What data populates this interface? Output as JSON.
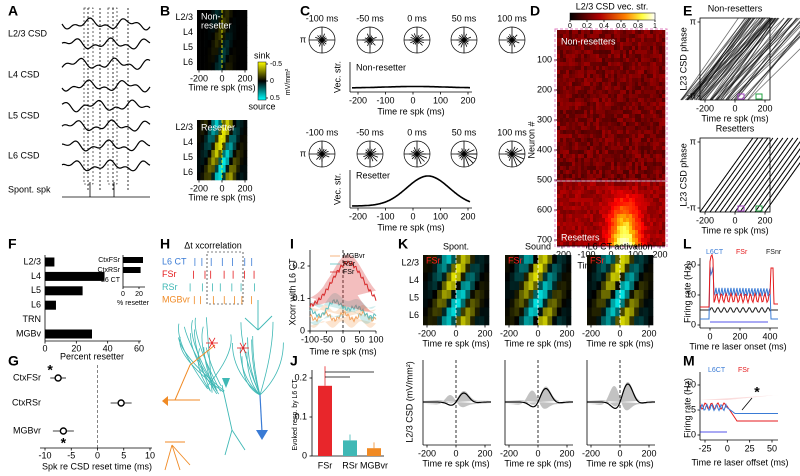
{
  "A": {
    "letter": "A",
    "traces": [
      "L2/3 CSD",
      "L4 CSD",
      "L5 CSD",
      "L6 CSD"
    ],
    "spike_label": "Spont. spk"
  },
  "B": {
    "letter": "B",
    "rows": [
      "L2/3",
      "L4",
      "L5",
      "L6"
    ],
    "groups": [
      [
        "Non-",
        "resetter"
      ],
      [
        "Resetter"
      ]
    ],
    "xticks": [
      -200,
      0,
      200
    ],
    "xlabel": "Time re spk (ms)",
    "colorbar": {
      "sink": "sink",
      "source": "source",
      "ticks": [
        -0.5,
        0,
        0.5
      ],
      "unit": "mV/mm²"
    }
  },
  "C": {
    "letter": "C",
    "polar_titles": [
      "-100 ms",
      "-50 ms",
      "0 ms",
      "50 ms",
      "100 ms"
    ],
    "pi": "π",
    "ylabel": "Vec. str.",
    "groups": [
      "Non-resetter",
      "Resetter"
    ],
    "xticks": [
      -200,
      -100,
      0,
      100,
      200
    ],
    "xlabel": "Time re spk (ms)"
  },
  "D": {
    "letter": "D",
    "colorbar_title": "L2/3 CSD vec. str.",
    "colorbar_ticks": [
      0,
      0.2,
      0.4,
      0.6,
      0.8,
      1
    ],
    "ylabel": "Neuron #",
    "ylim": [
      0,
      720
    ],
    "yticks": [
      100,
      200,
      300,
      400,
      500,
      600,
      700
    ],
    "xticks": [
      -200,
      -100,
      0,
      100,
      200
    ],
    "xlabel": "Time re spk (ms)",
    "groups": [
      "Non-resetters",
      "Resetters"
    ]
  },
  "E": {
    "letter": "E",
    "groups": [
      "Non-resetters",
      "Resetters"
    ],
    "ylabel": "L23 CSD phase",
    "yticks": [
      {
        "value": 3.14159,
        "label": "π"
      },
      {
        "value": -3.14159,
        "label": "-π"
      }
    ],
    "xticks": [
      -200,
      0,
      200
    ],
    "xlabel": "Time re spk (ms)"
  },
  "F": {
    "letter": "F",
    "categories": [
      "L2/3",
      "L4",
      "L5",
      "L6",
      "TRN",
      "MGBv"
    ],
    "values": [
      6,
      38,
      24,
      7,
      0,
      30
    ],
    "color": "#000000",
    "xticks": [
      0,
      20,
      40,
      60
    ],
    "xlabel": "Percent resetter",
    "inset": {
      "categories": [
        "CtxFSr",
        "CtxRSr",
        "L6 CT"
      ],
      "values": [
        25,
        22,
        0
      ],
      "xticks": [
        0,
        20
      ],
      "xlabel": "% resetter"
    }
  },
  "G": {
    "letter": "G",
    "categories": [
      "CtxFSr",
      "CtxRSr",
      "MGBvr"
    ],
    "values": [
      -7.5,
      4.5,
      -6.5
    ],
    "errors": [
      1.5,
      2,
      2
    ],
    "xticks": [
      -10,
      -5,
      0,
      5,
      10
    ],
    "xlabel": "Spk re CSD reset time (ms)",
    "annotations": [
      "*",
      "*"
    ]
  },
  "H": {
    "letter": "H",
    "title": "Δt xcorrelation",
    "rows": [
      "L6 CT",
      "FSr",
      "RSr",
      "MGBvr"
    ],
    "colors": [
      "#3a7bd5",
      "#e41a1c",
      "#3fb8b5",
      "#f08a24"
    ]
  },
  "I": {
    "letter": "I",
    "legend": [
      {
        "name": "MGBvr",
        "color": "#f4a460"
      },
      {
        "name": "RSr",
        "color": "#5fbfbf"
      },
      {
        "name": "FSr",
        "color": "#d62728"
      }
    ],
    "ylabel": "Xcorr with L6 CT",
    "yticks": [
      0,
      0.1,
      0.2
    ],
    "xticks": [
      -100,
      -50,
      0,
      50,
      100
    ],
    "xlabel": "Time re spk (ms)"
  },
  "J": {
    "letter": "J",
    "categories": [
      "FSr",
      "RSr",
      "MGBvr"
    ],
    "values": [
      0.18,
      0.04,
      0.02
    ],
    "errors": [
      0.05,
      0.015,
      0.015
    ],
    "colors": [
      "#e8262b",
      "#3fb8b5",
      "#f08a24"
    ],
    "yticks": [
      0,
      0.1,
      0.2
    ],
    "ylabel": "Evoked resp. by L6 CT"
  },
  "K": {
    "letter": "K",
    "conditions": [
      "Spont.",
      "Sound",
      "L6 CT activation"
    ],
    "cell": "FSr",
    "rows": [
      "L2/3",
      "L4",
      "L5",
      "L6"
    ],
    "xticks": [
      -200,
      0,
      200
    ],
    "xlabel": "Time re spk (ms)",
    "ylabel": "L2/3 CSD (mV/mm²)"
  },
  "L": {
    "letter": "L",
    "legend": [
      {
        "name": "L6CT",
        "color": "#3a7bd5"
      },
      {
        "name": "FSr",
        "color": "#e41a1c"
      },
      {
        "name": "FSnr",
        "color": "#222222"
      }
    ],
    "ylabel": "Firing rate (Hz)",
    "yticks": [
      0,
      10,
      20
    ],
    "xticks": [
      0,
      200,
      400
    ],
    "xlabel": "Time re laser onset (ms)"
  },
  "M": {
    "letter": "M",
    "legend": [
      {
        "name": "L6CT",
        "color": "#3a7bd5"
      },
      {
        "name": "FSr",
        "color": "#e41a1c"
      }
    ],
    "ylabel": "Firing rate (Hz)",
    "yticks": [
      0,
      5,
      10
    ],
    "xticks": [
      -25,
      0,
      25,
      50
    ],
    "xlabel": "Time re laser offset (ms)",
    "annotation": "*"
  }
}
